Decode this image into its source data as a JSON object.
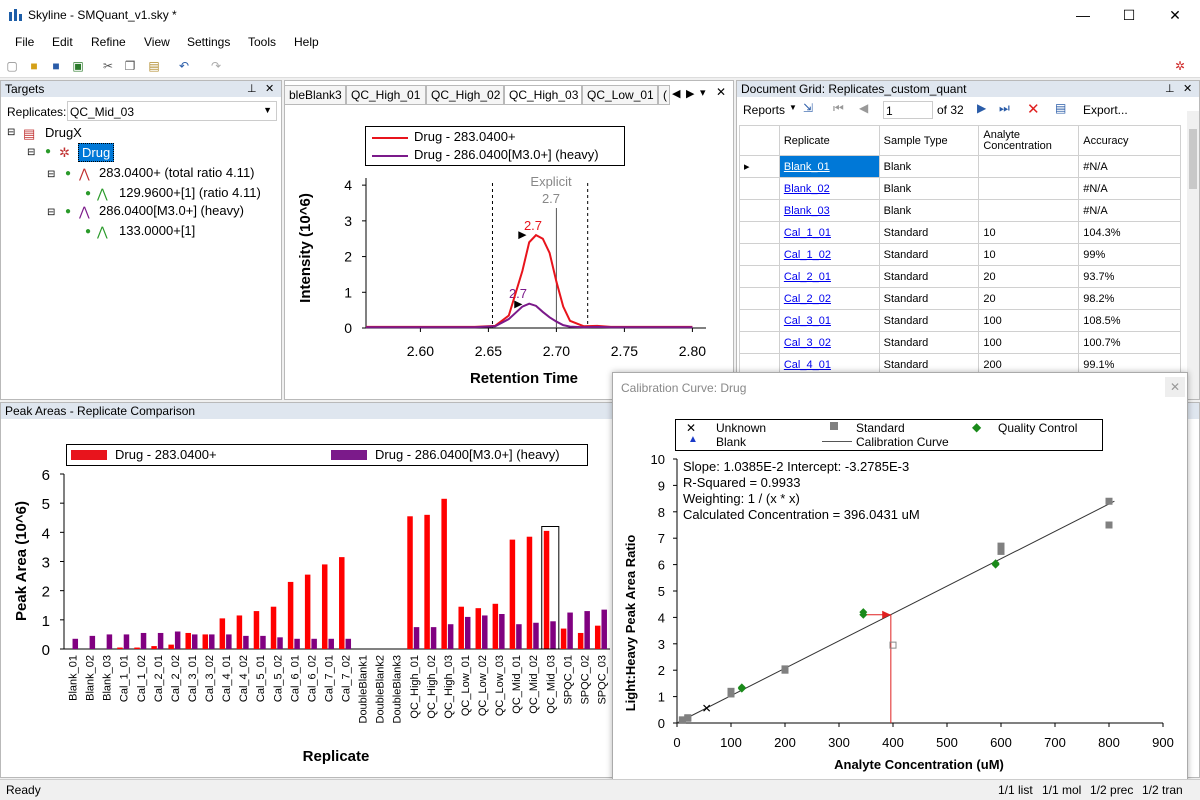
{
  "window": {
    "title": "Skyline - SMQuant_v1.sky *",
    "minimize": "—",
    "maximize": "☐",
    "close": "✕"
  },
  "menu": [
    "File",
    "Edit",
    "Refine",
    "View",
    "Settings",
    "Tools",
    "Help"
  ],
  "targets": {
    "header": "Targets",
    "replicates_label": "Replicates:",
    "replicate_value": "QC_Mid_03",
    "tree": [
      {
        "label": "DrugX"
      },
      {
        "label": "Drug"
      },
      {
        "label": "283.0400+ (total ratio 4.11)"
      },
      {
        "label": "129.9600+[1] (ratio 4.11)"
      },
      {
        "label": "286.0400[M3.0+] (heavy)"
      },
      {
        "label": "133.0000+[1]"
      }
    ]
  },
  "chromatogram": {
    "tabs": [
      "bleBlank3",
      "QC_High_01",
      "QC_High_02",
      "QC_High_03",
      "QC_Low_01",
      "("
    ],
    "legend": [
      "Drug - 283.0400+",
      "Drug - 286.0400[M3.0+] (heavy)"
    ],
    "ylabel": "Intensity (10^6)",
    "xlabel": "Retention Time",
    "explicit_label": "Explicit",
    "explicit_value": "2.7",
    "peak_label_light": "2.7",
    "peak_label_heavy": "2.7",
    "xticks": [
      "2.60",
      "2.65",
      "2.70",
      "2.75",
      "2.80"
    ],
    "yticks": [
      "0",
      "1",
      "2",
      "3",
      "4"
    ],
    "colors": {
      "light": "#e8141c",
      "heavy": "#7b1a8a"
    }
  },
  "grid": {
    "header": "Document Grid: Replicates_custom_quant",
    "reports_label": "Reports",
    "page_value": "1",
    "page_of": "of 32",
    "export_label": "Export...",
    "columns": [
      "Replicate",
      "Sample Type",
      "Analyte Concentration",
      "Accuracy"
    ],
    "rows": [
      [
        "Blank_01",
        "Blank",
        "",
        "#N/A"
      ],
      [
        "Blank_02",
        "Blank",
        "",
        "#N/A"
      ],
      [
        "Blank_03",
        "Blank",
        "",
        "#N/A"
      ],
      [
        "Cal_1_01",
        "Standard",
        "10",
        "104.3%"
      ],
      [
        "Cal_1_02",
        "Standard",
        "10",
        "99%"
      ],
      [
        "Cal_2_01",
        "Standard",
        "20",
        "93.7%"
      ],
      [
        "Cal_2_02",
        "Standard",
        "20",
        "98.2%"
      ],
      [
        "Cal_3_01",
        "Standard",
        "100",
        "108.5%"
      ],
      [
        "Cal_3_02",
        "Standard",
        "100",
        "100.7%"
      ],
      [
        "Cal_4_01",
        "Standard",
        "200",
        "99.1%"
      ]
    ]
  },
  "peak_areas": {
    "header": "Peak Areas - Replicate Comparison",
    "legend": [
      "Drug - 283.0400+",
      "Drug - 286.0400[M3.0+] (heavy)"
    ]
  },
  "calibration": {
    "header": "Calibration Curve: Drug",
    "legend": [
      "Unknown",
      "Standard",
      "Quality Control",
      "Blank",
      "Calibration Curve"
    ],
    "stats": [
      "Slope: 1.0385E-2 Intercept: -3.2785E-3",
      "R-Squared = 0.9933",
      "Weighting: 1 / (x * x)",
      "Calculated Concentration = 396.0431 uM"
    ]
  },
  "chart_data": [
    {
      "type": "line",
      "title": "",
      "xlabel": "Retention Time",
      "ylabel": "Intensity (10^6)",
      "xlim": [
        2.56,
        2.81
      ],
      "ylim": [
        0,
        4.2
      ],
      "series": [
        {
          "name": "Drug - 283.0400+",
          "x": [
            2.56,
            2.62,
            2.64,
            2.655,
            2.665,
            2.675,
            2.68,
            2.685,
            2.69,
            2.695,
            2.7,
            2.705,
            2.71,
            2.72,
            2.73,
            2.74,
            2.76,
            2.8
          ],
          "values": [
            0.03,
            0.03,
            0.03,
            0.06,
            0.35,
            1.6,
            2.4,
            2.6,
            2.5,
            2.1,
            1.3,
            0.6,
            0.2,
            0.05,
            0.06,
            0.03,
            0.03,
            0.03
          ]
        },
        {
          "name": "Drug - 286.0400[M3.0+] (heavy)",
          "x": [
            2.56,
            2.62,
            2.64,
            2.655,
            2.665,
            2.675,
            2.68,
            2.685,
            2.69,
            2.695,
            2.7,
            2.705,
            2.71,
            2.72,
            2.73,
            2.74,
            2.76,
            2.8
          ],
          "values": [
            0.02,
            0.02,
            0.02,
            0.05,
            0.25,
            0.6,
            0.68,
            0.62,
            0.45,
            0.3,
            0.18,
            0.08,
            0.04,
            0.02,
            0.03,
            0.02,
            0.02,
            0.02
          ]
        }
      ]
    },
    {
      "type": "bar",
      "title": "",
      "xlabel": "Replicate",
      "ylabel": "Peak Area (10^6)",
      "ylim": [
        0,
        6
      ],
      "categories": [
        "Blank_01",
        "Blank_02",
        "Blank_03",
        "Cal_1_01",
        "Cal_1_02",
        "Cal_2_01",
        "Cal_2_02",
        "Cal_3_01",
        "Cal_3_02",
        "Cal_4_01",
        "Cal_4_02",
        "Cal_5_01",
        "Cal_5_02",
        "Cal_6_01",
        "Cal_6_02",
        "Cal_7_01",
        "Cal_7_02",
        "DoubleBlank1",
        "DoubleBlank2",
        "DoubleBlank3",
        "QC_High_01",
        "QC_High_02",
        "QC_High_03",
        "QC_Low_01",
        "QC_Low_02",
        "QC_Low_03",
        "QC_Mid_01",
        "QC_Mid_02",
        "QC_Mid_03",
        "SPQC_01",
        "SPQC_02",
        "SPQC_03"
      ],
      "series": [
        {
          "name": "Drug - 283.0400+",
          "values": [
            0,
            0,
            0,
            0.05,
            0.05,
            0.1,
            0.15,
            0.55,
            0.5,
            1.05,
            1.15,
            1.3,
            1.45,
            2.3,
            2.55,
            2.9,
            3.15,
            0,
            0,
            0,
            4.55,
            4.6,
            5.15,
            1.45,
            1.4,
            1.55,
            3.75,
            3.85,
            4.05,
            0.7,
            0.55,
            0.8
          ]
        },
        {
          "name": "Drug - 286.0400[M3.0+] (heavy)",
          "values": [
            0.35,
            0.45,
            0.5,
            0.5,
            0.55,
            0.55,
            0.6,
            0.5,
            0.5,
            0.5,
            0.45,
            0.45,
            0.4,
            0.35,
            0.35,
            0.35,
            0.35,
            0,
            0,
            0,
            0.75,
            0.75,
            0.85,
            1.1,
            1.15,
            1.2,
            0.85,
            0.9,
            0.95,
            1.25,
            1.3,
            1.35
          ]
        }
      ]
    },
    {
      "type": "scatter",
      "title": "",
      "xlabel": "Analyte Concentration (uM)",
      "ylabel": "Light:Heavy Peak Area Ratio",
      "xlim": [
        0,
        900
      ],
      "ylim": [
        0,
        10
      ],
      "series": [
        {
          "name": "Standard",
          "x": [
            10,
            10,
            20,
            20,
            100,
            100,
            200,
            200,
            600,
            600,
            600,
            800,
            800
          ],
          "values": [
            0.1,
            0.12,
            0.18,
            0.2,
            1.1,
            1.2,
            2.0,
            2.05,
            6.5,
            6.6,
            6.7,
            7.5,
            8.4
          ]
        },
        {
          "name": "Quality Control",
          "x": [
            120,
            120,
            345,
            345,
            590,
            590
          ],
          "values": [
            1.3,
            1.35,
            4.1,
            4.2,
            6.0,
            6.05
          ]
        },
        {
          "name": "Unknown",
          "x": [
            55
          ],
          "values": [
            0.55
          ]
        },
        {
          "name": "Calibration Curve",
          "x": [
            0,
            810
          ],
          "values": [
            0,
            8.4
          ]
        }
      ]
    }
  ]
}
